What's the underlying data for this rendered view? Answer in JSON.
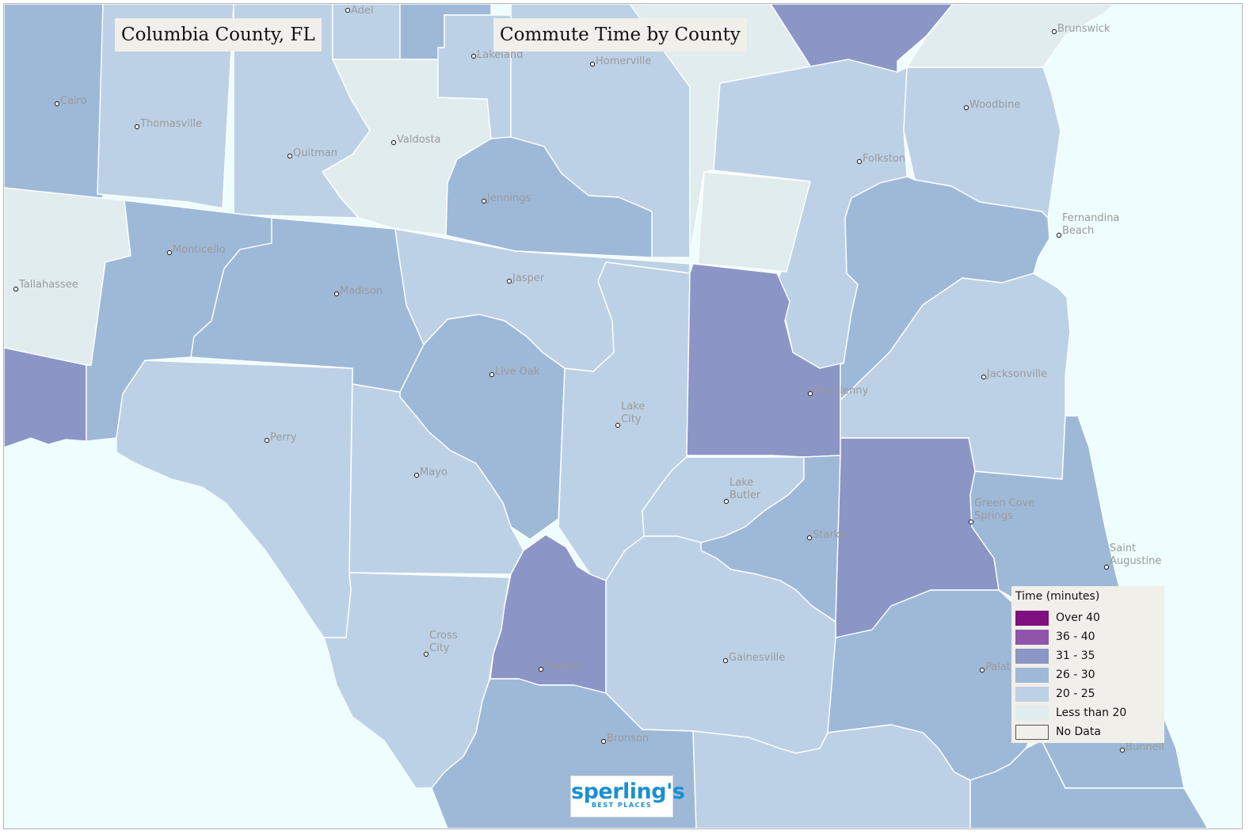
{
  "map_title": "Columbia County, FL",
  "map_subtitle": "Commute Time by County",
  "colors": {
    "water": "#eefdfd",
    "over_40": "#7e117f",
    "36_40": "#8e55aa",
    "31_35": "#8b96c6",
    "26_30": "#9eb9d8",
    "20_25": "#bdd1e6",
    "lt_20": "#e1ecee",
    "no_data": "#f1efe9"
  },
  "legend": {
    "title": "Time  (minutes)",
    "items": [
      {
        "label": "Over 40",
        "color": "#7e117f"
      },
      {
        "label": "36 - 40",
        "color": "#8e55aa"
      },
      {
        "label": "31 - 35",
        "color": "#8b96c6"
      },
      {
        "label": "26 - 30",
        "color": "#9eb9d8"
      },
      {
        "label": "20 - 25",
        "color": "#bdd1e6"
      },
      {
        "label": "Less than 20",
        "color": "#e1ecee"
      },
      {
        "label": "No Data",
        "color": "#f1efe9"
      }
    ]
  },
  "cities": [
    {
      "lines": [
        "Adel"
      ]
    },
    {
      "lines": [
        "Lakeland"
      ]
    },
    {
      "lines": [
        "Homerville"
      ]
    },
    {
      "lines": [
        "Brunswick"
      ]
    },
    {
      "lines": [
        "Cairo"
      ]
    },
    {
      "lines": [
        "Thomasville"
      ]
    },
    {
      "lines": [
        "Valdosta"
      ]
    },
    {
      "lines": [
        "Quitman"
      ]
    },
    {
      "lines": [
        "Woodbine"
      ]
    },
    {
      "lines": [
        "Folkston"
      ]
    },
    {
      "lines": [
        "Jennings"
      ]
    },
    {
      "lines": [
        "Fernandina",
        "Beach"
      ]
    },
    {
      "lines": [
        "Monticello"
      ]
    },
    {
      "lines": [
        "Tallahassee"
      ]
    },
    {
      "lines": [
        "Jasper"
      ]
    },
    {
      "lines": [
        "Madison"
      ]
    },
    {
      "lines": [
        "Jacksonville"
      ]
    },
    {
      "lines": [
        "Live Oak"
      ]
    },
    {
      "lines": [
        "Macclenny"
      ]
    },
    {
      "lines": [
        "Lake",
        "City"
      ]
    },
    {
      "lines": [
        "Perry"
      ]
    },
    {
      "lines": [
        "Mayo"
      ]
    },
    {
      "lines": [
        "Lake",
        "Butler"
      ]
    },
    {
      "lines": [
        "Green Cove",
        "Springs"
      ]
    },
    {
      "lines": [
        "Starke"
      ]
    },
    {
      "lines": [
        "Saint",
        "Augustine"
      ]
    },
    {
      "lines": [
        "Cross",
        "City"
      ]
    },
    {
      "lines": [
        "Trenton"
      ]
    },
    {
      "lines": [
        "Gainesville"
      ]
    },
    {
      "lines": [
        "Palatka"
      ]
    },
    {
      "lines": [
        "Bronson"
      ]
    },
    {
      "lines": [
        "Bunnell"
      ]
    }
  ],
  "logo": {
    "main": "sperling's",
    "sub": "BEST PLACES"
  }
}
